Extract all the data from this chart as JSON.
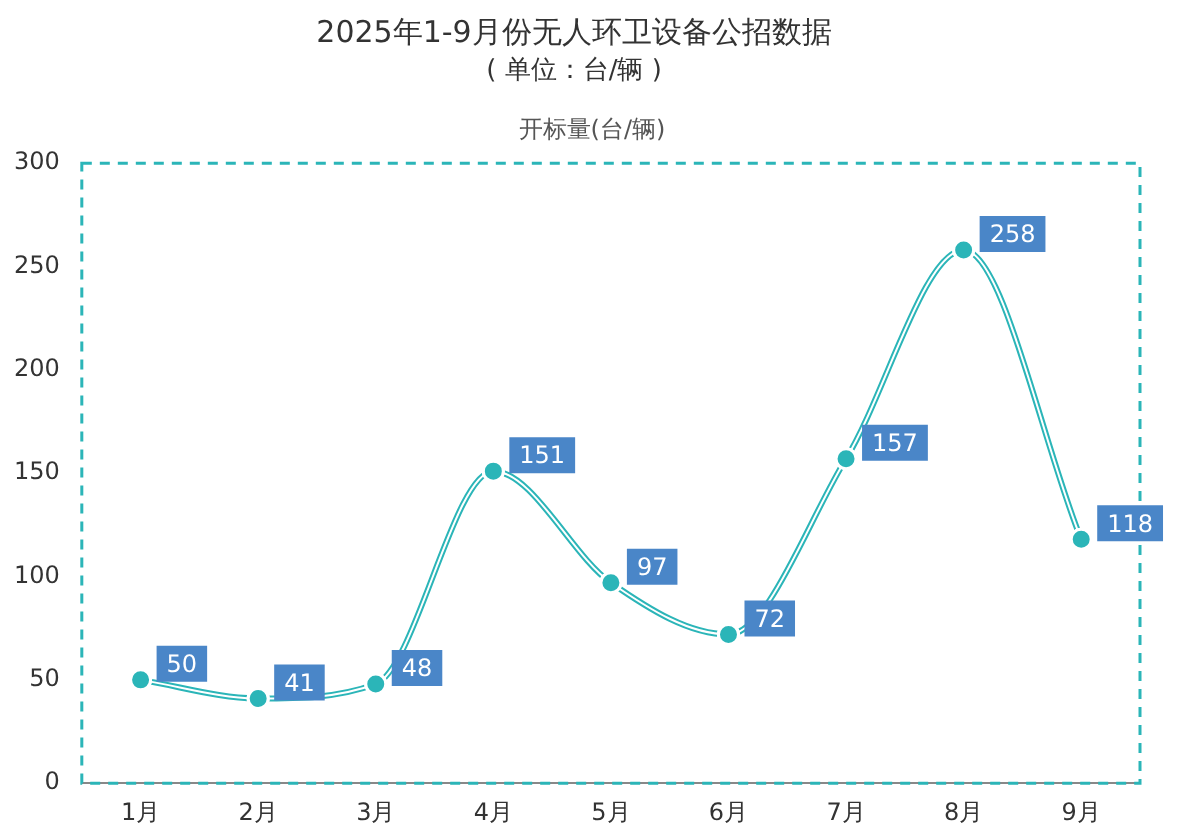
{
  "chart_data": {
    "type": "line",
    "title": "2025年1-9月份无人环卫设备公招数据",
    "subtitle": "( 单位：台/辆 )",
    "categories": [
      "1月",
      "2月",
      "3月",
      "4月",
      "5月",
      "6月",
      "7月",
      "8月",
      "9月"
    ],
    "series": [
      {
        "name": "开标量(台/辆)",
        "color": "#2bb5b8",
        "values": [
          50,
          41,
          48,
          151,
          97,
          72,
          157,
          258,
          118
        ]
      }
    ],
    "ylim": [
      0,
      300
    ],
    "yticks": [
      0,
      50,
      100,
      150,
      200,
      250,
      300
    ],
    "grid": false,
    "legend": "top",
    "marker": "circle",
    "line_style": "solid",
    "data_labels": true
  }
}
